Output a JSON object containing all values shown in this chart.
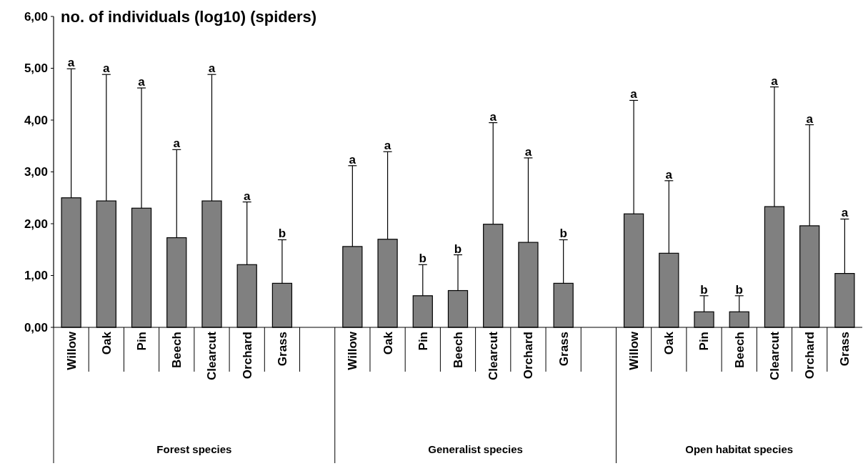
{
  "chart_data": {
    "type": "bar",
    "title": "no. of individuals (log10) (spiders)",
    "categories": [
      "Willow",
      "Oak",
      "Pin",
      "Beech",
      "Clearcut",
      "Orchard",
      "Grass",
      null,
      "Willow",
      "Oak",
      "Pin",
      "Beech",
      "Clearcut",
      "Orchard",
      "Grass",
      null,
      "Willow",
      "Oak",
      "Pin",
      "Beech",
      "Clearcut",
      "Orchard",
      "Grass"
    ],
    "values": [
      2.5,
      2.44,
      2.3,
      1.73,
      2.44,
      1.21,
      0.85,
      null,
      1.56,
      1.7,
      0.61,
      0.71,
      1.99,
      1.64,
      0.85,
      null,
      2.19,
      1.43,
      0.3,
      0.3,
      2.33,
      1.96,
      1.04
    ],
    "errors": [
      [
        2.5,
        4.99
      ],
      [
        2.44,
        4.88
      ],
      [
        2.3,
        4.62
      ],
      [
        1.73,
        3.43
      ],
      [
        2.44,
        4.88
      ],
      [
        1.21,
        2.42
      ],
      [
        0.85,
        1.69
      ],
      null,
      [
        1.56,
        3.12
      ],
      [
        1.7,
        3.39
      ],
      [
        0.61,
        1.21
      ],
      [
        0.71,
        1.4
      ],
      [
        1.99,
        3.95
      ],
      [
        1.64,
        3.27
      ],
      [
        0.85,
        1.69
      ],
      null,
      [
        2.19,
        4.38
      ],
      [
        1.43,
        2.83
      ],
      [
        0.3,
        0.61
      ],
      [
        0.3,
        0.61
      ],
      [
        2.33,
        4.64
      ],
      [
        1.96,
        3.91
      ],
      [
        1.04,
        2.09
      ]
    ],
    "color": "#808080",
    "ylim": [
      0,
      6
    ],
    "yticks": [
      {
        "value": 0,
        "label": "0,00"
      },
      {
        "value": 1,
        "label": "1,00"
      },
      {
        "value": 2,
        "label": "2,00"
      },
      {
        "value": 3,
        "label": "3,00"
      },
      {
        "value": 4,
        "label": "4,00"
      },
      {
        "value": 5,
        "label": "5,00"
      },
      {
        "value": 6,
        "label": "6,00"
      }
    ],
    "annotations": [
      "Forest species",
      "Generalist species",
      "Open habitat species",
      "a",
      "a",
      "a",
      "a",
      "a",
      "a",
      "b",
      "a",
      "a",
      "b",
      "b",
      "a",
      "a",
      "b",
      "a",
      "a",
      "b",
      "b",
      "a",
      "a",
      "a"
    ]
  }
}
